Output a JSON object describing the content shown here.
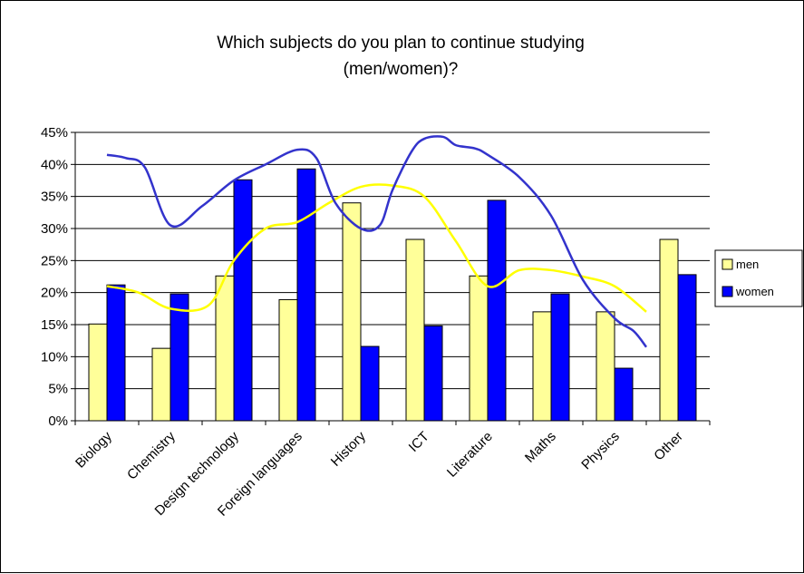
{
  "chart_data": {
    "type": "bar",
    "title": "Which subjects do you plan to continue studying",
    "subtitle": "(men/women)?",
    "categories": [
      "Biology",
      "Chemistry",
      "Design technology",
      "Foreign languages",
      "History",
      "ICT",
      "Literature",
      "Maths",
      "Physics",
      "Other"
    ],
    "series": [
      {
        "name": "men",
        "color": "#ffff99",
        "trend_color": "#ffff00",
        "values": [
          15.1,
          11.3,
          22.6,
          18.9,
          34.0,
          28.3,
          22.6,
          17.0,
          17.0,
          28.3
        ]
      },
      {
        "name": "women",
        "color": "#0000ff",
        "trend_color": "#3333cc",
        "values": [
          21.2,
          19.8,
          37.6,
          39.3,
          11.6,
          14.8,
          34.4,
          19.8,
          8.2,
          22.8
        ]
      }
    ],
    "trend_lines": [
      {
        "series": "men",
        "color": "#ffff00",
        "x": [
          0,
          0.5,
          1,
          1.6,
          2,
          2.5,
          3,
          3.5,
          4,
          4.5,
          5,
          5.5,
          6,
          6.5,
          7,
          7.5,
          8,
          8.5
        ],
        "y": [
          21,
          20,
          17.5,
          18,
          25,
          30,
          31,
          34,
          36.5,
          36.7,
          35,
          28,
          21,
          23.5,
          23.5,
          22.5,
          21,
          17
        ]
      },
      {
        "series": "women",
        "color": "#3333cc",
        "x": [
          0,
          0.3,
          0.6,
          1,
          1.5,
          2,
          2.5,
          3,
          3.3,
          3.6,
          4,
          4.3,
          4.5,
          4.8,
          5,
          5.3,
          5.5,
          5.8,
          6,
          6.5,
          7,
          7.5,
          8,
          8.3,
          8.5
        ],
        "y": [
          41.5,
          41,
          39.5,
          30.5,
          33.5,
          37.5,
          40,
          42.3,
          41,
          34,
          30,
          30.5,
          36,
          42,
          44,
          44.3,
          43,
          42.5,
          41.5,
          38,
          32,
          22,
          16,
          14,
          11.5
        ]
      }
    ],
    "ylim": [
      0,
      45
    ],
    "yticks": [
      "0%",
      "5%",
      "10%",
      "15%",
      "20%",
      "25%",
      "30%",
      "35%",
      "40%",
      "45%"
    ],
    "ytick_values": [
      0,
      5,
      10,
      15,
      20,
      25,
      30,
      35,
      40,
      45
    ],
    "grid": true,
    "legend_position": "right",
    "xlabel": "",
    "ylabel": ""
  }
}
